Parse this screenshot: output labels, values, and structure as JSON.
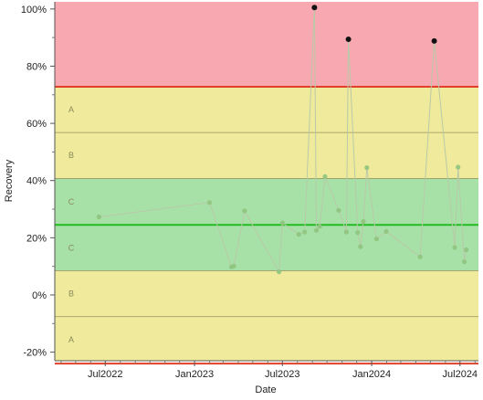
{
  "chart_data": {
    "type": "line",
    "title": "",
    "xlabel": "Date",
    "ylabel": "Recovery",
    "ylim": [
      -23,
      102.5
    ],
    "xlim": [
      "2022-03-19",
      "2024-08-08"
    ],
    "x_ticks": [
      {
        "date": "2022-07-01",
        "label": "Jul2022"
      },
      {
        "date": "2023-01-01",
        "label": "Jan2023"
      },
      {
        "date": "2023-07-01",
        "label": "Jul2023"
      },
      {
        "date": "2024-01-01",
        "label": "Jan2024"
      },
      {
        "date": "2024-07-01",
        "label": "Jul2024"
      }
    ],
    "y_ticks": [
      {
        "value": -20,
        "label": "-20%"
      },
      {
        "value": 0,
        "label": "0%"
      },
      {
        "value": 20,
        "label": "20%"
      },
      {
        "value": 40,
        "label": "40%"
      },
      {
        "value": 60,
        "label": "60%"
      },
      {
        "value": 80,
        "label": "80%"
      },
      {
        "value": 100,
        "label": "100%"
      }
    ],
    "control_limits": {
      "center": 24.5,
      "ucl": 72.8,
      "lcl": -24.0
    },
    "zones": [
      {
        "from": 72.8,
        "to": 102.5,
        "color": "#f8a8b0"
      },
      {
        "from": 40.7,
        "to": 72.8,
        "color": "#f0eb9c",
        "label": "",
        "label_pos": 0
      },
      {
        "from": 8.5,
        "to": 40.7,
        "color": "#a7e1a7"
      },
      {
        "from": -24.0,
        "to": 8.5,
        "color": "#f0eb9c"
      },
      {
        "from": -25.0,
        "to": -24.0,
        "color": "#f8a8b0"
      }
    ],
    "zone_lines": [
      56.8,
      40.7,
      8.5,
      -7.6
    ],
    "zone_labels": [
      {
        "text": "A",
        "value": 64.8
      },
      {
        "text": "B",
        "value": 48.8
      },
      {
        "text": "C",
        "value": 32.6
      },
      {
        "text": "C",
        "value": 16.5
      },
      {
        "text": "B",
        "value": 0.5
      },
      {
        "text": "A",
        "value": -15.6
      }
    ],
    "series": [
      {
        "points": [
          {
            "x": "2022-06-18",
            "y": 27.3
          },
          {
            "x": "2023-02-01",
            "y": 32.3
          },
          {
            "x": "2023-03-18",
            "y": 9.8
          },
          {
            "x": "2023-03-23",
            "y": 10.1
          },
          {
            "x": "2023-04-14",
            "y": 29.4
          },
          {
            "x": "2023-06-24",
            "y": 8.1
          },
          {
            "x": "2023-07-01",
            "y": 25.2
          },
          {
            "x": "2023-08-04",
            "y": 21.2
          },
          {
            "x": "2023-08-16",
            "y": 22.0
          },
          {
            "x": "2023-09-05",
            "y": 100.5
          },
          {
            "x": "2023-09-09",
            "y": 22.6
          },
          {
            "x": "2023-09-16",
            "y": 24.0
          },
          {
            "x": "2023-09-27",
            "y": 41.4
          },
          {
            "x": "2023-10-25",
            "y": 29.6
          },
          {
            "x": "2023-11-10",
            "y": 22.0
          },
          {
            "x": "2023-11-14",
            "y": 89.4
          },
          {
            "x": "2023-12-03",
            "y": 21.8
          },
          {
            "x": "2023-12-09",
            "y": 16.9
          },
          {
            "x": "2023-12-15",
            "y": 25.7
          },
          {
            "x": "2023-12-22",
            "y": 44.5
          },
          {
            "x": "2024-01-11",
            "y": 19.6
          },
          {
            "x": "2024-01-31",
            "y": 22.2
          },
          {
            "x": "2024-04-10",
            "y": 13.3
          },
          {
            "x": "2024-05-09",
            "y": 88.8
          },
          {
            "x": "2024-06-20",
            "y": 16.6
          },
          {
            "x": "2024-06-27",
            "y": 44.7
          },
          {
            "x": "2024-07-10",
            "y": 11.6
          },
          {
            "x": "2024-07-14",
            "y": 15.8
          }
        ]
      }
    ],
    "out_of_control_color": "#111111",
    "point_color": "#8fc47e",
    "line_color": "#b9c9a8",
    "center_color": "#22bb22",
    "limit_color": "#e0402a",
    "grid": false
  }
}
